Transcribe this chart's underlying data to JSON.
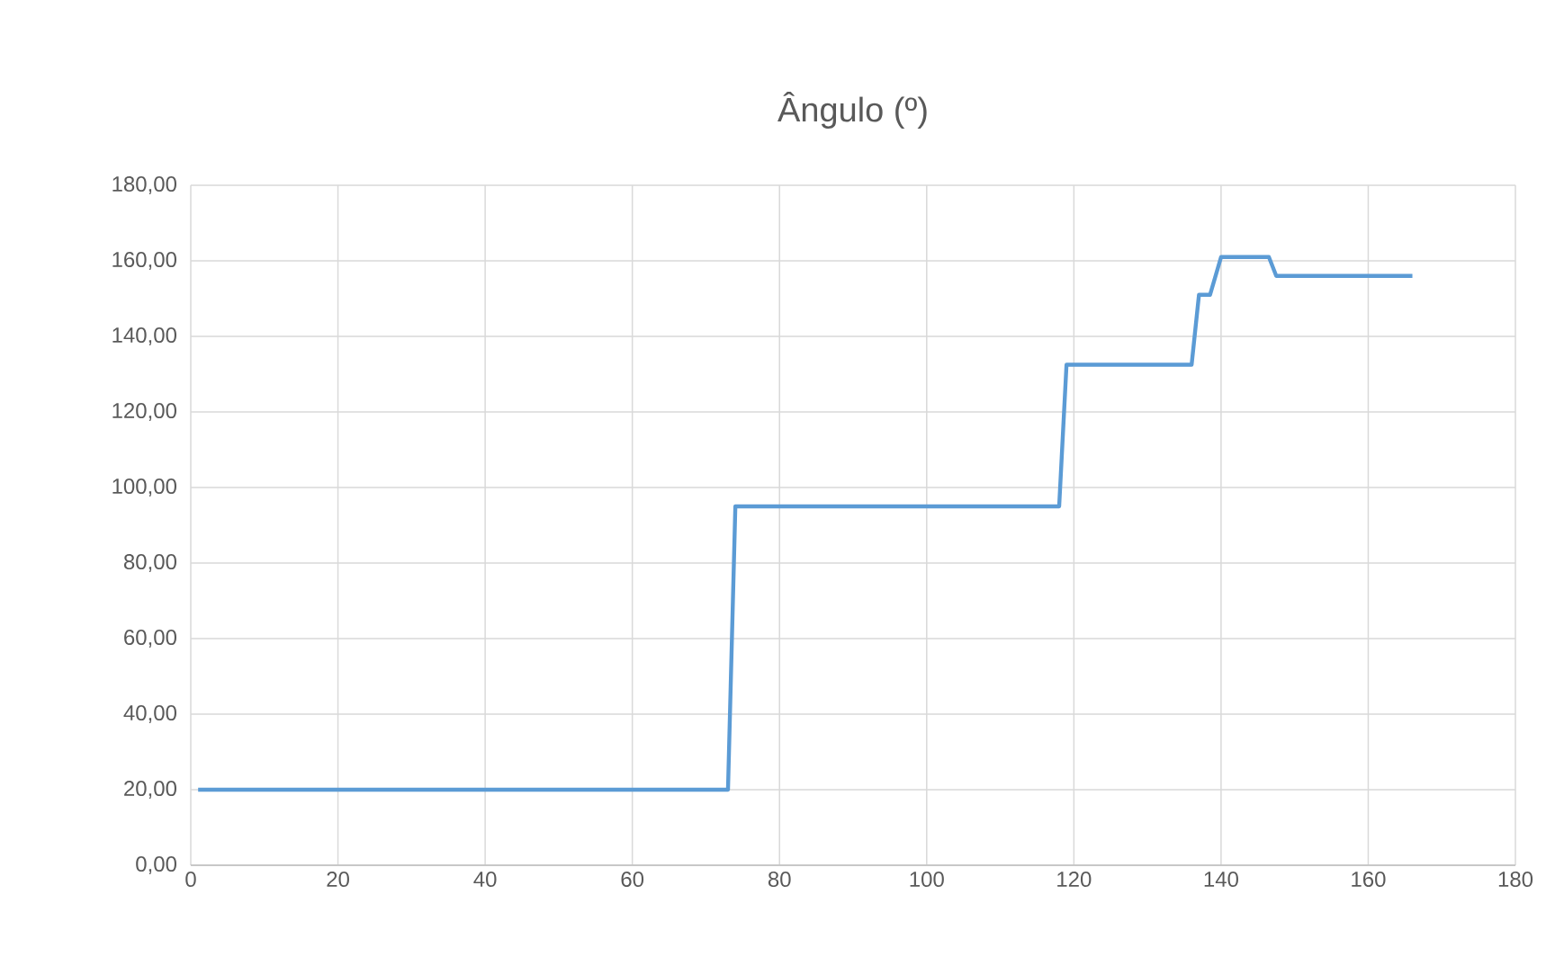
{
  "chart_data": {
    "type": "line",
    "title": "Ângulo (º)",
    "x": [
      1,
      73,
      74,
      118,
      119,
      136,
      137,
      138.5,
      140,
      146.5,
      147.5,
      166
    ],
    "values": [
      20,
      20,
      95,
      95,
      132.5,
      132.5,
      151,
      151,
      161,
      161,
      156,
      156
    ],
    "color": "#5b9bd5",
    "xlim": [
      0,
      180
    ],
    "xticks": [
      0,
      20,
      40,
      60,
      80,
      100,
      120,
      140,
      160,
      180
    ],
    "ylim": [
      0,
      180
    ],
    "yticks": [
      {
        "value": 0,
        "label": "0,00"
      },
      {
        "value": 20,
        "label": "20,00"
      },
      {
        "value": 40,
        "label": "40,00"
      },
      {
        "value": 60,
        "label": "60,00"
      },
      {
        "value": 80,
        "label": "80,00"
      },
      {
        "value": 100,
        "label": "100,00"
      },
      {
        "value": 120,
        "label": "120,00"
      },
      {
        "value": 140,
        "label": "140,00"
      },
      {
        "value": 160,
        "label": "160,00"
      },
      {
        "value": 180,
        "label": "180,00"
      }
    ],
    "grid": true
  }
}
